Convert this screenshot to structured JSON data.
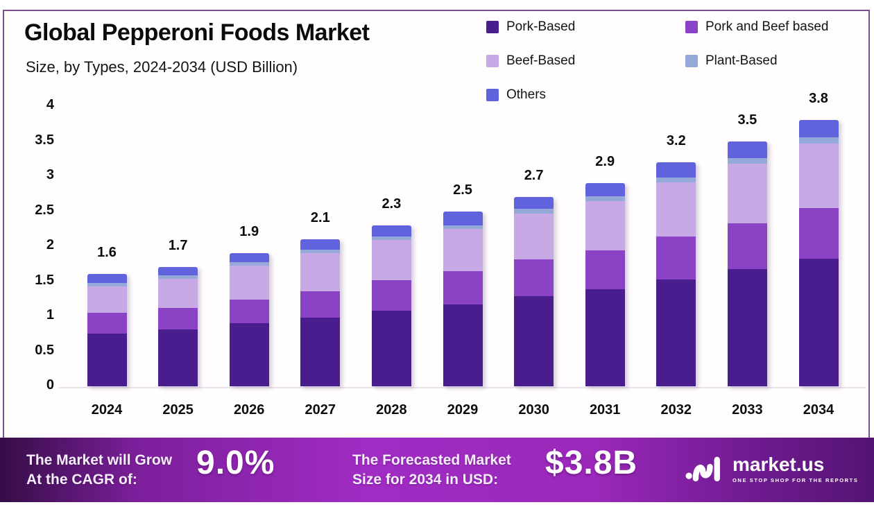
{
  "header": {
    "title": "Global Pepperoni Foods Market",
    "subtitle": "Size, by Types, 2024-2034 (USD Billion)"
  },
  "legend": [
    {
      "label": "Pork-Based",
      "color": "#4a1d8e"
    },
    {
      "label": "Pork and Beef based",
      "color": "#8b43c6"
    },
    {
      "label": "Beef-Based",
      "color": "#c7a9e6"
    },
    {
      "label": "Plant-Based",
      "color": "#94a9d9"
    },
    {
      "label": "Others",
      "color": "#6063dc"
    }
  ],
  "chart_data": {
    "type": "bar",
    "stacked": true,
    "title": "Global Pepperoni Foods Market",
    "subtitle": "Size, by Types, 2024-2034 (USD Billion)",
    "xlabel": "",
    "ylabel": "USD Billion",
    "ylim": [
      0,
      4
    ],
    "grid": false,
    "legend_position": "top-right",
    "categories": [
      "2024",
      "2025",
      "2026",
      "2027",
      "2028",
      "2029",
      "2030",
      "2031",
      "2032",
      "2033",
      "2034"
    ],
    "series": [
      {
        "name": "Pork-Based",
        "color": "#4a1d8e",
        "values": [
          0.75,
          0.81,
          0.9,
          0.98,
          1.08,
          1.17,
          1.29,
          1.39,
          1.52,
          1.67,
          1.82
        ]
      },
      {
        "name": "Pork and Beef based",
        "color": "#8b43c6",
        "values": [
          0.3,
          0.31,
          0.34,
          0.38,
          0.43,
          0.47,
          0.52,
          0.55,
          0.62,
          0.66,
          0.72
        ]
      },
      {
        "name": "Beef-Based",
        "color": "#c7a9e6",
        "values": [
          0.38,
          0.41,
          0.48,
          0.54,
          0.58,
          0.61,
          0.66,
          0.7,
          0.77,
          0.85,
          0.93
        ]
      },
      {
        "name": "Plant-Based",
        "color": "#94a9d9",
        "values": [
          0.05,
          0.05,
          0.05,
          0.05,
          0.05,
          0.05,
          0.06,
          0.07,
          0.07,
          0.08,
          0.08
        ]
      },
      {
        "name": "Others",
        "color": "#6063dc",
        "values": [
          0.12,
          0.12,
          0.13,
          0.15,
          0.16,
          0.2,
          0.17,
          0.19,
          0.22,
          0.24,
          0.25
        ]
      }
    ],
    "totals_labels": [
      "1.6",
      "1.7",
      "1.9",
      "2.1",
      "2.3",
      "2.5",
      "2.7",
      "2.9",
      "3.2",
      "3.5",
      "3.8"
    ],
    "y_ticks": [
      "4",
      "3.5",
      "3",
      "2.5",
      "2",
      "1.5",
      "1",
      "0.5",
      "0"
    ]
  },
  "banner": {
    "cagr_label_line1": "The Market will Grow",
    "cagr_label_line2": "At the CAGR of:",
    "cagr_value": "9.0%",
    "forecast_label_line1": "The Forecasted Market",
    "forecast_label_line2": "Size for 2034 in USD:",
    "forecast_value": "$3.8B",
    "brand_name": "market.us",
    "brand_tagline": "ONE STOP SHOP FOR THE REPORTS"
  }
}
